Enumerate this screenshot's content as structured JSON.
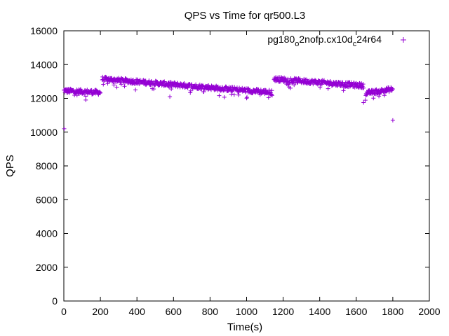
{
  "chart_data": {
    "type": "scatter",
    "title": "QPS vs Time for qr500.L3",
    "xlabel": "Time(s)",
    "ylabel": "QPS",
    "xlim": [
      0,
      2000
    ],
    "ylim": [
      0,
      16000
    ],
    "xticks": [
      "0",
      "200",
      "400",
      "600",
      "800",
      "1000",
      "1200",
      "1400",
      "1600",
      "1800",
      "2000"
    ],
    "yticks": [
      "0",
      "2000",
      "4000",
      "6000",
      "8000",
      "10000",
      "12000",
      "14000",
      "16000"
    ],
    "grid": false,
    "legend_position": "top-right",
    "legend": {
      "base1": "pg180",
      "sub1": "o",
      "mid": "2nofp.cx10d",
      "sub2": "c",
      "tail": "24r64"
    },
    "marker": "+",
    "color": "#9400d3",
    "segments": [
      {
        "x_start": 0,
        "x_end": 200,
        "y_start": 12450,
        "y_end": 12350
      },
      {
        "x_start": 210,
        "x_end": 1140,
        "y_start": 13150,
        "y_end": 12350
      },
      {
        "x_start": 1150,
        "x_end": 1640,
        "y_start": 13150,
        "y_end": 12750
      },
      {
        "x_start": 1650,
        "x_end": 1800,
        "y_start": 12300,
        "y_end": 12550
      }
    ],
    "outliers": [
      {
        "x": 2,
        "y": 10200
      },
      {
        "x": 1800,
        "y": 10700
      },
      {
        "x": 1640,
        "y": 11750
      },
      {
        "x": 120,
        "y": 11900
      },
      {
        "x": 580,
        "y": 12100
      }
    ]
  }
}
